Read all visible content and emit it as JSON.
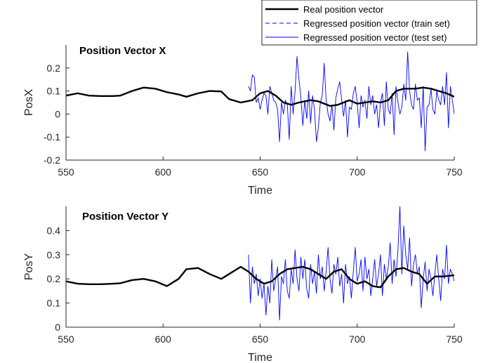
{
  "legend": {
    "entries": [
      {
        "label": "Real position vector",
        "style": "real"
      },
      {
        "label": "Regressed position vector (train set)",
        "style": "train"
      },
      {
        "label": "Regressed position vector (test set)",
        "style": "test"
      }
    ]
  },
  "colors": {
    "real": "#000000",
    "regressed": "#0000ff",
    "axis": "#262626"
  },
  "chart_data": [
    {
      "type": "line",
      "title": "Position Vector X",
      "xlabel": "Time",
      "ylabel": "PosX",
      "xlim": [
        550,
        750
      ],
      "ylim": [
        -0.2,
        0.3
      ],
      "xticks": [
        550,
        600,
        650,
        700,
        750
      ],
      "yticks": [
        -0.2,
        -0.1,
        0,
        0.1,
        0.2
      ],
      "xtick_labels": [
        "550",
        "600",
        "650",
        "700",
        "750"
      ],
      "ytick_labels": [
        "-0.2",
        "-0.1",
        "0",
        "0.1",
        "0.2"
      ],
      "grid": false,
      "legend_position": "top-right, above plot",
      "series": [
        {
          "name": "Real position vector",
          "style": "real",
          "x": [
            550,
            556,
            562,
            568,
            574,
            578,
            584,
            590,
            596,
            602,
            608,
            612,
            618,
            624,
            630,
            634,
            640,
            646,
            650,
            654,
            658,
            662,
            666,
            670,
            676,
            680,
            686,
            690,
            696,
            700,
            704,
            708,
            712,
            716,
            720,
            724,
            730,
            734,
            738,
            742,
            746,
            750
          ],
          "y": [
            0.08,
            0.09,
            0.08,
            0.078,
            0.078,
            0.08,
            0.1,
            0.115,
            0.11,
            0.095,
            0.085,
            0.075,
            0.09,
            0.1,
            0.098,
            0.065,
            0.05,
            0.06,
            0.09,
            0.1,
            0.08,
            0.05,
            0.04,
            0.05,
            0.06,
            0.055,
            0.035,
            0.04,
            0.06,
            0.045,
            0.05,
            0.055,
            0.05,
            0.06,
            0.1,
            0.11,
            0.11,
            0.115,
            0.11,
            0.1,
            0.09,
            0.075
          ]
        },
        {
          "name": "Regressed position vector (train set)",
          "style": "train",
          "x": [
            550,
            556,
            562,
            568,
            574,
            578,
            584,
            590,
            596,
            602,
            608,
            612,
            618,
            624,
            630,
            634,
            640,
            644
          ],
          "y": [
            0.08,
            0.09,
            0.08,
            0.078,
            0.078,
            0.08,
            0.1,
            0.115,
            0.11,
            0.095,
            0.085,
            0.075,
            0.09,
            0.1,
            0.098,
            0.065,
            0.05,
            0.055
          ]
        },
        {
          "name": "Regressed position vector (test set)",
          "style": "test",
          "x": [
            644,
            645,
            646,
            647,
            648,
            649,
            650,
            651,
            652,
            653,
            654,
            655,
            656,
            657,
            658,
            659,
            660,
            661,
            662,
            663,
            664,
            665,
            666,
            667,
            668,
            669,
            670,
            671,
            672,
            673,
            674,
            675,
            676,
            677,
            678,
            679,
            680,
            681,
            682,
            683,
            684,
            685,
            686,
            687,
            688,
            689,
            690,
            691,
            692,
            693,
            694,
            695,
            696,
            697,
            698,
            699,
            700,
            701,
            702,
            703,
            704,
            705,
            706,
            707,
            708,
            709,
            710,
            711,
            712,
            713,
            714,
            715,
            716,
            717,
            718,
            719,
            720,
            721,
            722,
            723,
            724,
            725,
            726,
            727,
            728,
            729,
            730,
            731,
            732,
            733,
            734,
            735,
            736,
            737,
            738,
            739,
            740,
            741,
            742,
            743,
            744,
            745,
            746,
            747,
            748,
            749,
            750
          ],
          "y": [
            0.12,
            0.1,
            0.17,
            0.16,
            0.05,
            0.07,
            0.02,
            0.06,
            0.09,
            0.08,
            0.0,
            0.12,
            0.09,
            0.06,
            0.05,
            0.02,
            -0.12,
            0.05,
            0.0,
            0.06,
            0.04,
            -0.11,
            0.12,
            0.0,
            0.1,
            0.25,
            0.15,
            0.07,
            -0.05,
            0.06,
            -0.02,
            0.1,
            -0.04,
            0.08,
            0.02,
            -0.12,
            -0.06,
            0.05,
            0.08,
            0.22,
            0.06,
            0.0,
            -0.03,
            0.04,
            -0.07,
            0.07,
            0.11,
            0.14,
            0.06,
            -0.01,
            0.06,
            -0.1,
            0.03,
            0.02,
            0.09,
            0.12,
            0.05,
            -0.06,
            0.08,
            0.03,
            0.06,
            -0.02,
            0.12,
            0.04,
            0.08,
            0.0,
            0.04,
            -0.06,
            0.05,
            0.09,
            -0.05,
            0.14,
            0.02,
            0.0,
            0.09,
            -0.09,
            0.12,
            0.05,
            0.0,
            0.03,
            0.13,
            0.06,
            0.27,
            0.1,
            0.04,
            0.02,
            0.13,
            0.06,
            0.07,
            -0.06,
            0.12,
            -0.16,
            0.03,
            0.04,
            0.11,
            0.02,
            0.0,
            0.1,
            0.06,
            0.04,
            0.12,
            0.04,
            0.18,
            -0.06,
            0.12,
            0.06,
            0.0
          ]
        }
      ]
    },
    {
      "type": "line",
      "title": "Position Vector Y",
      "xlabel": "Time",
      "ylabel": "PosY",
      "xlim": [
        550,
        750
      ],
      "ylim": [
        0,
        0.5
      ],
      "xticks": [
        550,
        600,
        650,
        700,
        750
      ],
      "yticks": [
        0,
        0.1,
        0.2,
        0.3,
        0.4
      ],
      "xtick_labels": [
        "550",
        "600",
        "650",
        "700",
        "750"
      ],
      "ytick_labels": [
        "0",
        "0.1",
        "0.2",
        "0.3",
        "0.4"
      ],
      "grid": false,
      "series": [
        {
          "name": "Real position vector",
          "style": "real",
          "x": [
            550,
            556,
            562,
            568,
            574,
            578,
            584,
            590,
            596,
            602,
            608,
            612,
            618,
            624,
            630,
            634,
            640,
            644,
            648,
            652,
            656,
            660,
            664,
            668,
            672,
            676,
            680,
            684,
            688,
            692,
            696,
            700,
            704,
            708,
            712,
            716,
            720,
            724,
            728,
            732,
            736,
            740,
            744,
            750
          ],
          "y": [
            0.19,
            0.18,
            0.178,
            0.178,
            0.18,
            0.182,
            0.195,
            0.2,
            0.19,
            0.17,
            0.2,
            0.24,
            0.245,
            0.22,
            0.2,
            0.22,
            0.25,
            0.23,
            0.2,
            0.18,
            0.19,
            0.22,
            0.24,
            0.245,
            0.25,
            0.24,
            0.22,
            0.2,
            0.23,
            0.24,
            0.2,
            0.18,
            0.19,
            0.17,
            0.165,
            0.21,
            0.24,
            0.245,
            0.23,
            0.22,
            0.18,
            0.21,
            0.21,
            0.215
          ]
        },
        {
          "name": "Regressed position vector (train set)",
          "style": "train",
          "x": [
            550,
            556,
            562,
            568,
            574,
            578,
            584,
            590,
            596,
            602,
            608,
            612,
            618,
            624,
            630,
            634,
            640,
            644
          ],
          "y": [
            0.19,
            0.18,
            0.178,
            0.178,
            0.18,
            0.182,
            0.195,
            0.2,
            0.19,
            0.17,
            0.2,
            0.24,
            0.245,
            0.22,
            0.2,
            0.22,
            0.25,
            0.23
          ]
        },
        {
          "name": "Regressed position vector (test set)",
          "style": "test",
          "x": [
            644,
            645,
            646,
            647,
            648,
            649,
            650,
            651,
            652,
            653,
            654,
            655,
            656,
            657,
            658,
            659,
            660,
            661,
            662,
            663,
            664,
            665,
            666,
            667,
            668,
            669,
            670,
            671,
            672,
            673,
            674,
            675,
            676,
            677,
            678,
            679,
            680,
            681,
            682,
            683,
            684,
            685,
            686,
            687,
            688,
            689,
            690,
            691,
            692,
            693,
            694,
            695,
            696,
            697,
            698,
            699,
            700,
            701,
            702,
            703,
            704,
            705,
            706,
            707,
            708,
            709,
            710,
            711,
            712,
            713,
            714,
            715,
            716,
            717,
            718,
            719,
            720,
            721,
            722,
            723,
            724,
            725,
            726,
            727,
            728,
            729,
            730,
            731,
            732,
            733,
            734,
            735,
            736,
            737,
            738,
            739,
            740,
            741,
            742,
            743,
            744,
            745,
            746,
            747,
            748,
            749,
            750
          ],
          "y": [
            0.3,
            0.1,
            0.25,
            0.18,
            0.22,
            0.13,
            0.2,
            0.12,
            0.18,
            0.05,
            0.17,
            0.1,
            0.28,
            0.15,
            0.2,
            0.25,
            0.03,
            0.21,
            0.18,
            0.28,
            0.15,
            0.12,
            0.24,
            0.18,
            0.32,
            0.2,
            0.15,
            0.29,
            0.2,
            0.28,
            0.16,
            0.12,
            0.26,
            0.18,
            0.23,
            0.14,
            0.3,
            0.2,
            0.25,
            0.15,
            0.23,
            0.33,
            0.2,
            0.14,
            0.26,
            0.22,
            0.29,
            0.17,
            0.22,
            0.1,
            0.26,
            0.18,
            0.21,
            0.12,
            0.23,
            0.33,
            0.19,
            0.22,
            0.28,
            0.15,
            0.29,
            0.2,
            0.24,
            0.13,
            0.2,
            0.28,
            0.17,
            0.22,
            0.3,
            0.13,
            0.26,
            0.2,
            0.25,
            0.35,
            0.18,
            0.28,
            0.21,
            0.32,
            0.5,
            0.22,
            0.42,
            0.3,
            0.24,
            0.37,
            0.17,
            0.26,
            0.3,
            0.22,
            0.25,
            0.08,
            0.2,
            0.27,
            0.15,
            0.24,
            0.2,
            0.13,
            0.22,
            0.3,
            0.2,
            0.11,
            0.24,
            0.2,
            0.34,
            0.18,
            0.24,
            0.22,
            0.19
          ]
        }
      ]
    }
  ]
}
